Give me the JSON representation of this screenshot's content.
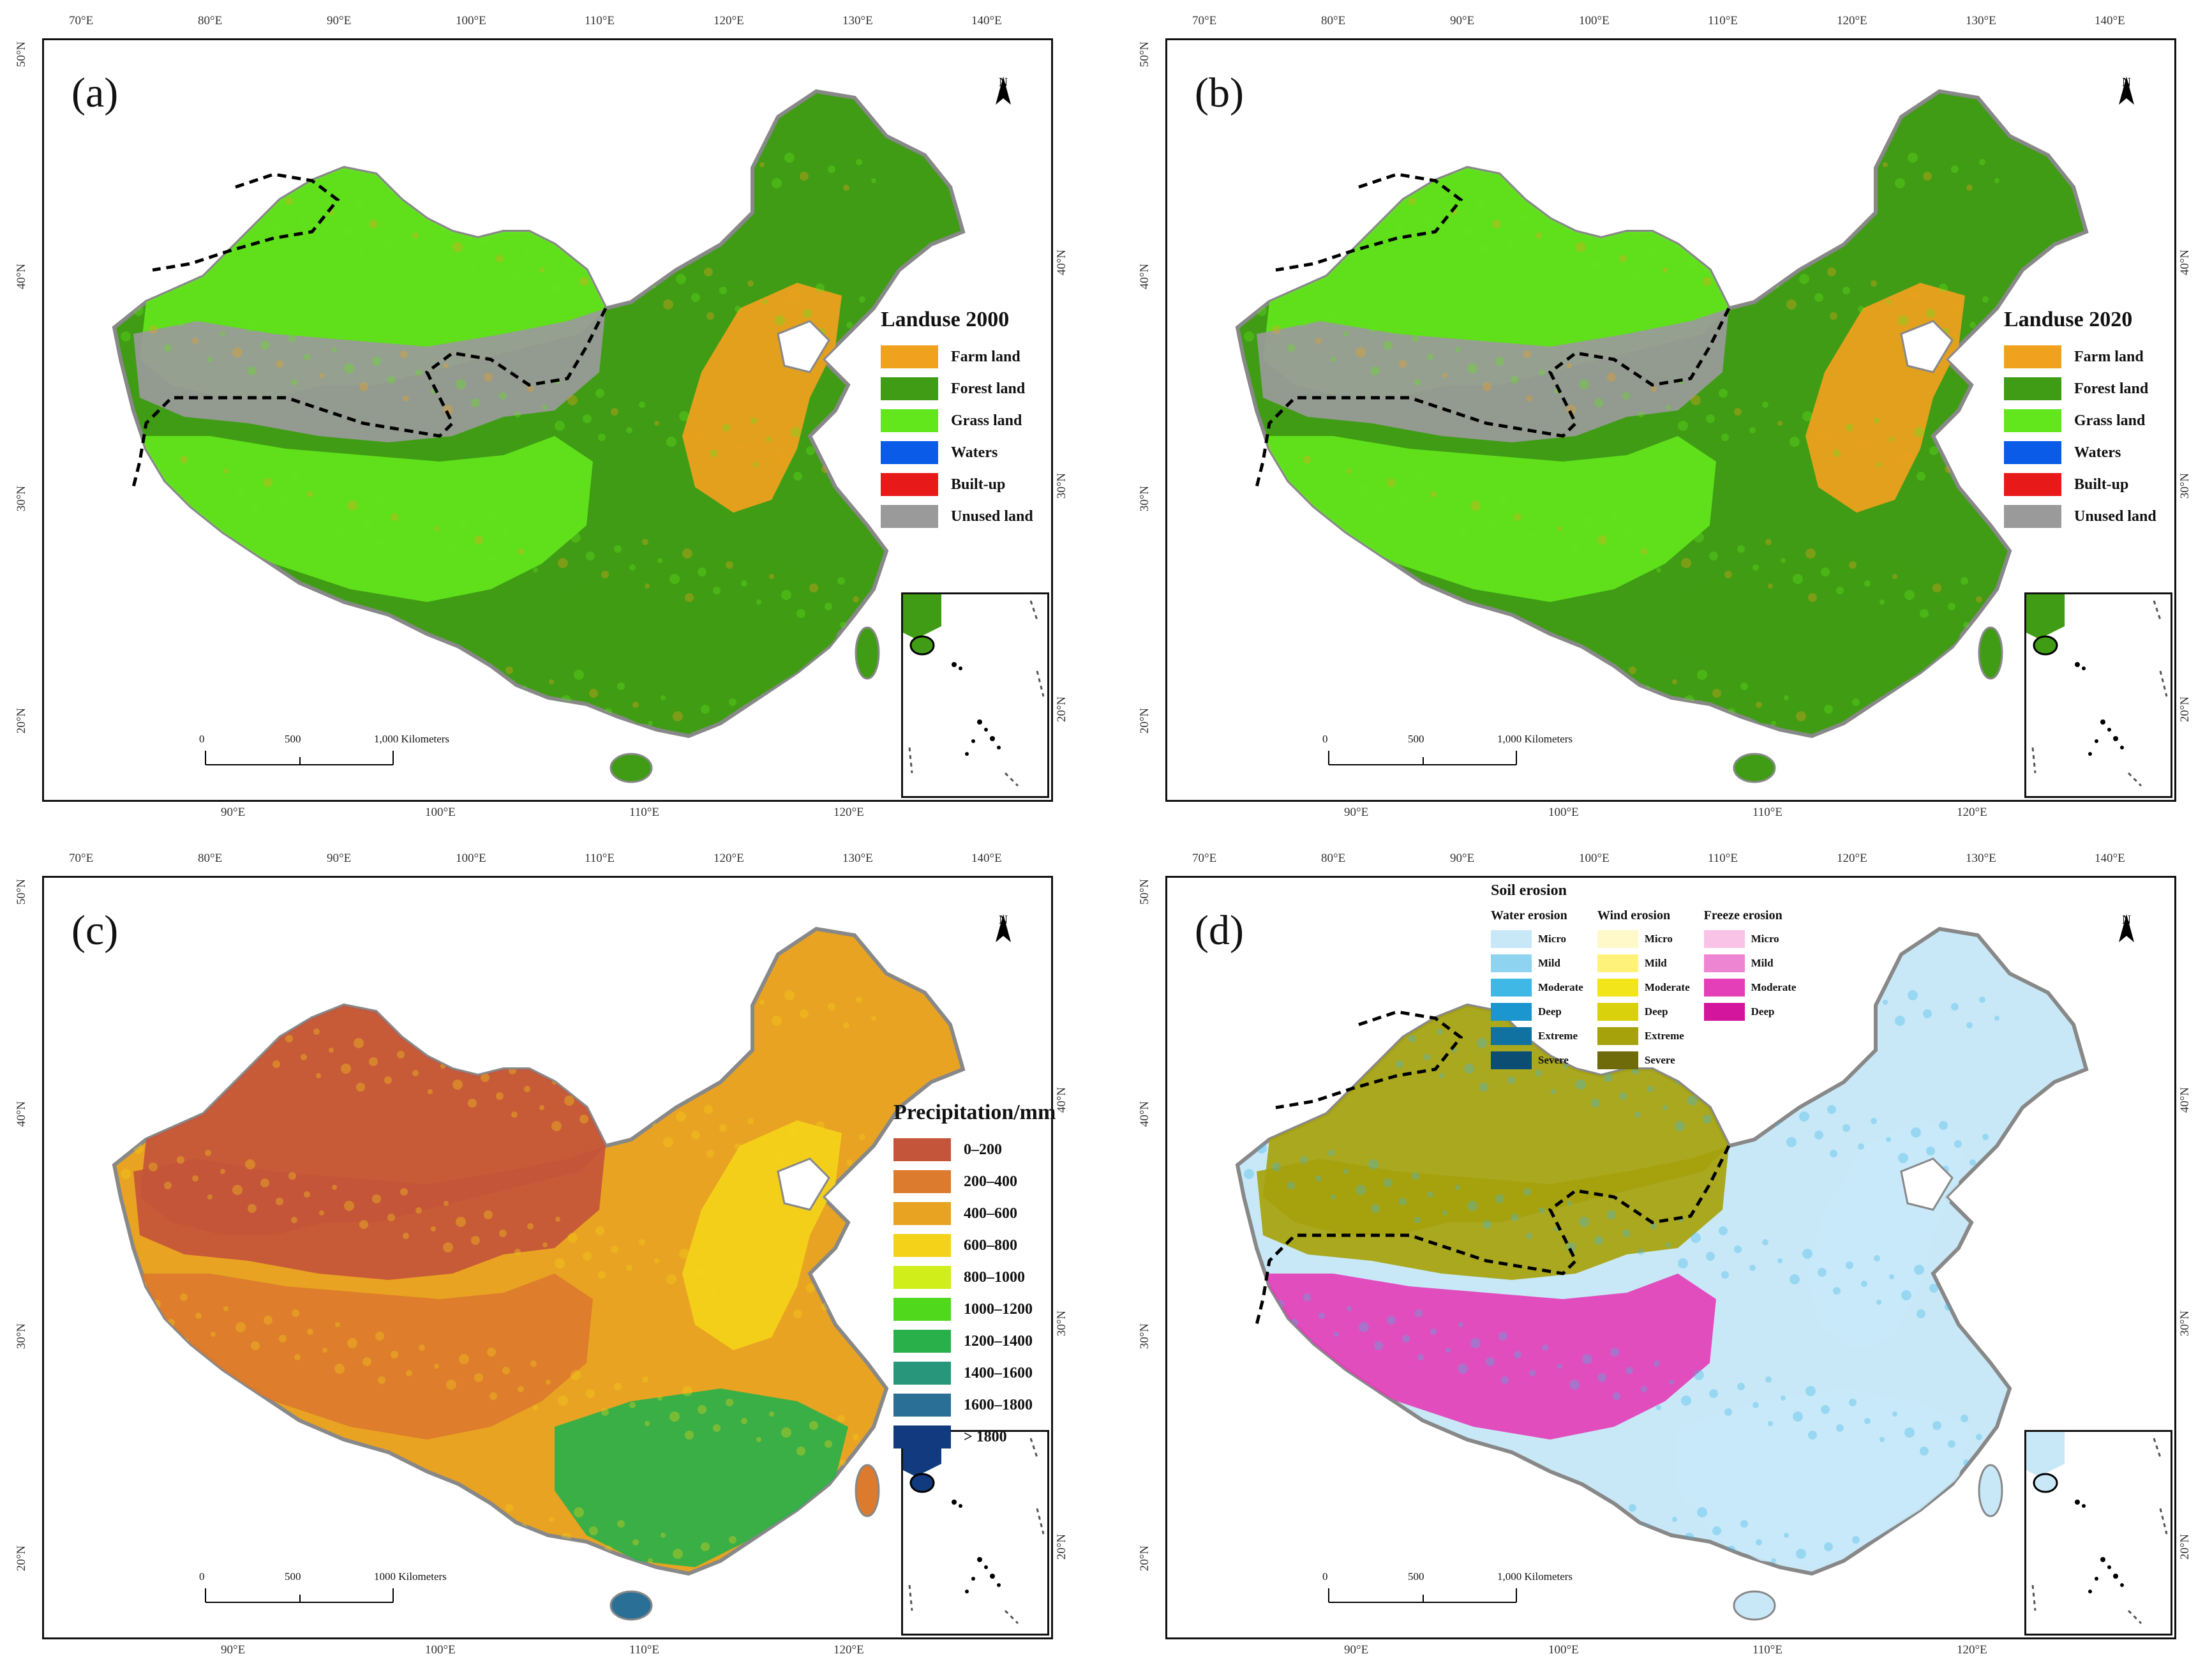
{
  "colors": {
    "farm": "#f0a11e",
    "forest": "#3f9c14",
    "grass": "#62e61c",
    "waters": "#0a5ce8",
    "builtup": "#e81919",
    "unused": "#9a9a9a",
    "map_bg": "#ffffff",
    "border": "#111111"
  },
  "top_ticks": [
    "70°E",
    "80°E",
    "90°E",
    "100°E",
    "110°E",
    "120°E",
    "130°E",
    "140°E"
  ],
  "bottom_ticks": [
    "90°E",
    "100°E",
    "110°E",
    "120°E"
  ],
  "left_ticks": [
    "50°N",
    "40°N",
    "30°N",
    "20°N"
  ],
  "right_ticks": [
    "40°N",
    "30°N",
    "20°N"
  ],
  "north_label": "N",
  "panels": [
    {
      "label": "(a)",
      "legend_title": "Landuse 2000",
      "legend_items": [
        {
          "label": "Farm land",
          "color": "#f0a11e"
        },
        {
          "label": "Forest land",
          "color": "#3f9c14"
        },
        {
          "label": "Grass land",
          "color": "#62e61c"
        },
        {
          "label": "Waters",
          "color": "#0a5ce8"
        },
        {
          "label": "Built-up",
          "color": "#e81919"
        },
        {
          "label": "Unused land",
          "color": "#9a9a9a"
        }
      ],
      "scale_labels": [
        "0",
        "500",
        "1,000 Kilometers"
      ]
    },
    {
      "label": "(b)",
      "legend_title": "Landuse 2020",
      "legend_items": [
        {
          "label": "Farm land",
          "color": "#f0a11e"
        },
        {
          "label": "Forest land",
          "color": "#3f9c14"
        },
        {
          "label": "Grass land",
          "color": "#62e61c"
        },
        {
          "label": "Waters",
          "color": "#0a5ce8"
        },
        {
          "label": "Built-up",
          "color": "#e81919"
        },
        {
          "label": "Unused land",
          "color": "#9a9a9a"
        }
      ],
      "scale_labels": [
        "0",
        "500",
        "1,000 Kilometers"
      ]
    },
    {
      "label": "(c)",
      "legend_title": "Precipitation/mm",
      "legend_items": [
        {
          "label": "0–200",
          "color": "#c4553a"
        },
        {
          "label": "200–400",
          "color": "#dc7a2d"
        },
        {
          "label": "400–600",
          "color": "#e9a322"
        },
        {
          "label": "600–800",
          "color": "#f4d21a"
        },
        {
          "label": "800–1000",
          "color": "#cfee1a"
        },
        {
          "label": "1000–1200",
          "color": "#4fd81c"
        },
        {
          "label": "1200–1400",
          "color": "#2ab04a"
        },
        {
          "label": "1400–1600",
          "color": "#27967a"
        },
        {
          "label": "1600–1800",
          "color": "#2a7096"
        },
        {
          "label": "> 1800",
          "color": "#123a7e"
        }
      ],
      "scale_labels": [
        "0",
        "500",
        "1000 Kilometers"
      ]
    },
    {
      "label": "(d)",
      "legend_title": "Soil erosion",
      "soil_groups": [
        {
          "title": "Water erosion",
          "items": [
            {
              "label": "Micro",
              "color": "#c8e8f8"
            },
            {
              "label": "Mild",
              "color": "#8ed4f0"
            },
            {
              "label": "Moderate",
              "color": "#3fb8e6"
            },
            {
              "label": "Deep",
              "color": "#1c96cf"
            },
            {
              "label": "Extreme",
              "color": "#1072a0"
            },
            {
              "label": "Severe",
              "color": "#0b4d73"
            }
          ]
        },
        {
          "title": "Wind erosion",
          "items": [
            {
              "label": "Micro",
              "color": "#fff8c8"
            },
            {
              "label": "Mild",
              "color": "#fff27a"
            },
            {
              "label": "Moderate",
              "color": "#f2e51a"
            },
            {
              "label": "Deep",
              "color": "#d9d10c"
            },
            {
              "label": "Extreme",
              "color": "#a6a20c"
            },
            {
              "label": "Severe",
              "color": "#6f6b0a"
            }
          ]
        },
        {
          "title": "Freeze erosion",
          "items": [
            {
              "label": "Micro",
              "color": "#f8c3e6"
            },
            {
              "label": "Mild",
              "color": "#ee85d2"
            },
            {
              "label": "Moderate",
              "color": "#e43fb8"
            },
            {
              "label": "Deep",
              "color": "#d3149c"
            }
          ]
        }
      ],
      "scale_labels": [
        "0",
        "500",
        "1,000 Kilometers"
      ]
    }
  ]
}
